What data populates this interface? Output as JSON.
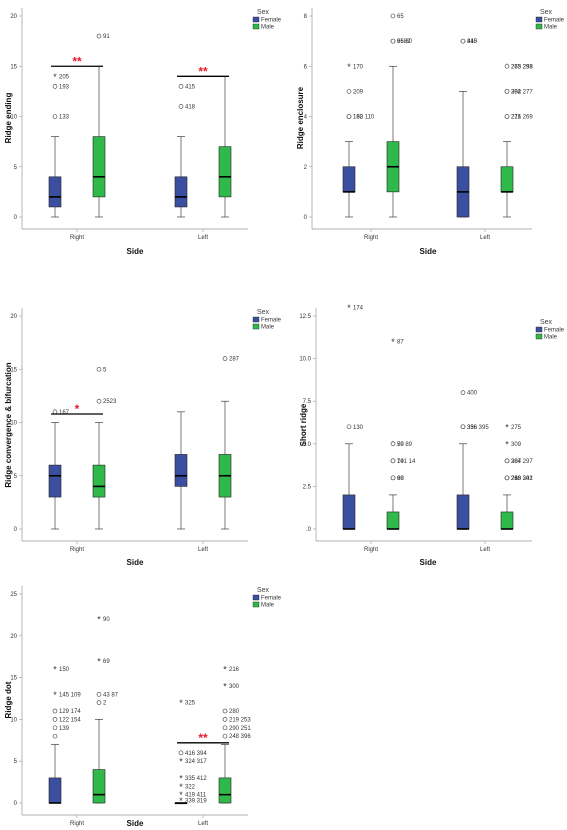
{
  "legend": {
    "title": "Sex",
    "female": "Female",
    "male": "Male"
  },
  "colors": {
    "female": "#3b4fa0",
    "male": "#2fb94a",
    "sig": "#e8192c"
  },
  "chart_data": [
    {
      "type": "box",
      "ylabel": "Ridge ending",
      "xlabel": "Side",
      "categories": [
        "Right",
        "Left"
      ],
      "ylim": [
        0,
        20
      ],
      "yticks": [
        "0",
        "5",
        "10",
        "15",
        "20"
      ],
      "ytick_values": [
        0,
        5,
        10,
        15,
        20
      ],
      "boxes": [
        {
          "cat": 0,
          "sex": "female",
          "min": 0,
          "q1": 1,
          "median": 2,
          "q3": 4,
          "max": 8,
          "outliers": [
            {
              "v": 14,
              "label": "205",
              "star": true
            },
            {
              "v": 13,
              "label": "193",
              "star": false
            },
            {
              "v": 10,
              "label": "133",
              "star": false
            }
          ]
        },
        {
          "cat": 0,
          "sex": "male",
          "min": 0,
          "q1": 2,
          "median": 4,
          "q3": 8,
          "max": 15,
          "outliers": [
            {
              "v": 18,
              "label": "91",
              "star": false
            }
          ]
        },
        {
          "cat": 1,
          "sex": "female",
          "min": 0,
          "q1": 1,
          "median": 2,
          "q3": 4,
          "max": 8,
          "outliers": [
            {
              "v": 13,
              "label": "415",
              "star": false
            },
            {
              "v": 11,
              "label": "418",
              "star": false
            }
          ]
        },
        {
          "cat": 1,
          "sex": "male",
          "min": 0,
          "q1": 2,
          "median": 4,
          "q3": 7,
          "max": 14,
          "outliers": []
        }
      ],
      "significance": [
        {
          "cat": 0,
          "y": 15,
          "label": "**"
        },
        {
          "cat": 1,
          "y": 14,
          "label": "**"
        }
      ]
    },
    {
      "type": "box",
      "ylabel": "Ridge enclosure",
      "xlabel": "Side",
      "categories": [
        "Right",
        "Left"
      ],
      "ylim": [
        0,
        8
      ],
      "yticks": [
        "0",
        "2",
        "4",
        "6",
        "8"
      ],
      "ytick_values": [
        0,
        2,
        4,
        6,
        8
      ],
      "boxes": [
        {
          "cat": 0,
          "sex": "female",
          "min": 0,
          "q1": 1,
          "median": 1,
          "q3": 2,
          "max": 3,
          "outliers": [
            {
              "v": 6,
              "label": "170",
              "star": true
            },
            {
              "v": 5,
              "label": "209",
              "star": false
            },
            {
              "v": 4,
              "label": "160 110",
              "star": false
            },
            {
              "v": 4,
              "label": "132",
              "star": false
            }
          ]
        },
        {
          "cat": 0,
          "sex": "male",
          "min": 0,
          "q1": 1,
          "median": 2,
          "q3": 3,
          "max": 6,
          "outliers": [
            {
              "v": 8,
              "label": "65",
              "star": false
            },
            {
              "v": 7,
              "label": "9682",
              "star": false
            },
            {
              "v": 7,
              "label": "65  60",
              "star": false
            }
          ]
        },
        {
          "cat": 1,
          "sex": "female",
          "min": 0,
          "q1": 0,
          "median": 1,
          "q3": 2,
          "max": 5,
          "outliers": [
            {
              "v": 7,
              "label": "410",
              "star": false
            },
            {
              "v": 7,
              "label": "345",
              "star": false
            }
          ]
        },
        {
          "cat": 1,
          "sex": "male",
          "min": 0,
          "q1": 1,
          "median": 1,
          "q3": 2,
          "max": 3,
          "outliers": [
            {
              "v": 6,
              "label": "263  256",
              "star": true
            },
            {
              "v": 6,
              "label": "275  293",
              "star": false
            },
            {
              "v": 5,
              "label": "284  277",
              "star": false
            },
            {
              "v": 5,
              "label": "302",
              "star": false
            },
            {
              "v": 4,
              "label": "216  269",
              "star": false
            },
            {
              "v": 4,
              "label": "271",
              "star": false
            }
          ]
        }
      ],
      "significance": []
    },
    {
      "type": "box",
      "ylabel": "Ridge convergence & bifurcation",
      "xlabel": "Side",
      "categories": [
        "Right",
        "Left"
      ],
      "ylim": [
        0,
        20
      ],
      "yticks": [
        "0",
        "5",
        "10",
        "15",
        "20"
      ],
      "ytick_values": [
        0,
        5,
        10,
        15,
        20
      ],
      "boxes": [
        {
          "cat": 0,
          "sex": "female",
          "min": 0,
          "q1": 3,
          "median": 5,
          "q3": 6,
          "max": 10,
          "outliers": [
            {
              "v": 11,
              "label": "167",
              "star": false
            }
          ]
        },
        {
          "cat": 0,
          "sex": "male",
          "min": 0,
          "q1": 3,
          "median": 4,
          "q3": 6,
          "max": 10,
          "outliers": [
            {
              "v": 15,
              "label": "5",
              "star": false
            },
            {
              "v": 12,
              "label": "2523",
              "star": false
            }
          ]
        },
        {
          "cat": 1,
          "sex": "female",
          "min": 0,
          "q1": 4,
          "median": 5,
          "q3": 7,
          "max": 11,
          "outliers": []
        },
        {
          "cat": 1,
          "sex": "male",
          "min": 0,
          "q1": 3,
          "median": 5,
          "q3": 7,
          "max": 12,
          "outliers": [
            {
              "v": 16,
              "label": "287",
              "star": false
            }
          ]
        }
      ],
      "significance": [
        {
          "cat": 0,
          "y": 10.8,
          "label": "*"
        }
      ]
    },
    {
      "type": "box",
      "ylabel": "Short ridge",
      "xlabel": "Side",
      "categories": [
        "Right",
        "Left"
      ],
      "ylim": [
        0,
        12.5
      ],
      "yticks": [
        ".0",
        "2.5",
        "5.0",
        "7.5",
        "10.0",
        "12.5"
      ],
      "ytick_values": [
        0,
        2.5,
        5,
        7.5,
        10,
        12.5
      ],
      "boxes": [
        {
          "cat": 0,
          "sex": "female",
          "min": 0,
          "q1": 0,
          "median": 0,
          "q3": 2,
          "max": 5,
          "outliers": [
            {
              "v": 13,
              "label": "174",
              "star": true
            },
            {
              "v": 6,
              "label": "130",
              "star": false
            }
          ]
        },
        {
          "cat": 0,
          "sex": "male",
          "min": 0,
          "q1": 0,
          "median": 0,
          "q3": 1,
          "max": 2,
          "outliers": [
            {
              "v": 11,
              "label": "87",
              "star": true
            },
            {
              "v": 5,
              "label": "59 89",
              "star": true
            },
            {
              "v": 5,
              "label": "70",
              "star": false
            },
            {
              "v": 4,
              "label": "74",
              "star": false
            },
            {
              "v": 4,
              "label": "101 14",
              "star": false
            },
            {
              "v": 3,
              "label": "68",
              "star": false
            },
            {
              "v": 3,
              "label": "90",
              "star": false
            }
          ]
        },
        {
          "cat": 1,
          "sex": "female",
          "min": 0,
          "q1": 0,
          "median": 0,
          "q3": 2,
          "max": 5,
          "outliers": [
            {
              "v": 8,
              "label": "400",
              "star": false
            },
            {
              "v": 6,
              "label": "356  395",
              "star": false
            },
            {
              "v": 6,
              "label": "336",
              "star": false
            }
          ]
        },
        {
          "cat": 1,
          "sex": "male",
          "min": 0,
          "q1": 0,
          "median": 0,
          "q3": 1,
          "max": 2,
          "outliers": [
            {
              "v": 6,
              "label": "275",
              "star": true
            },
            {
              "v": 5,
              "label": "309",
              "star": true
            },
            {
              "v": 4,
              "label": "284 297",
              "star": false
            },
            {
              "v": 4,
              "label": "307",
              "star": false
            },
            {
              "v": 3,
              "label": "283  301",
              "star": false
            },
            {
              "v": 3,
              "label": "260",
              "star": false
            },
            {
              "v": 3,
              "label": "218  242",
              "star": false
            }
          ]
        }
      ],
      "significance": []
    },
    {
      "type": "box",
      "ylabel": "Ridge dot",
      "xlabel": "Side",
      "categories": [
        "Right",
        "Left"
      ],
      "ylim": [
        0,
        25
      ],
      "yticks": [
        "0",
        "5",
        "10",
        "15",
        "20",
        "25"
      ],
      "ytick_values": [
        0,
        5,
        10,
        15,
        20,
        25
      ],
      "boxes": [
        {
          "cat": 0,
          "sex": "female",
          "min": 0,
          "q1": 0,
          "median": 0,
          "q3": 3,
          "max": 7,
          "outliers": [
            {
              "v": 16,
              "label": "150",
              "star": true
            },
            {
              "v": 13,
              "label": "145  109",
              "star": true
            },
            {
              "v": 11,
              "label": "129  174",
              "star": false
            },
            {
              "v": 10,
              "label": "122  154",
              "star": false
            },
            {
              "v": 9,
              "label": "139",
              "star": false
            },
            {
              "v": 8,
              "label": "",
              "star": false
            }
          ]
        },
        {
          "cat": 0,
          "sex": "male",
          "min": 0,
          "q1": 0,
          "median": 1,
          "q3": 4,
          "max": 10,
          "outliers": [
            {
              "v": 22,
              "label": "90",
              "star": true
            },
            {
              "v": 17,
              "label": "69",
              "star": true
            },
            {
              "v": 13,
              "label": "43  87",
              "star": false
            },
            {
              "v": 12,
              "label": "2",
              "star": false
            }
          ]
        },
        {
          "cat": 1,
          "sex": "female",
          "min": 0,
          "q1": 0,
          "median": 0,
          "q3": 0,
          "max": 0,
          "outliers": [
            {
              "v": 12,
              "label": "325",
              "star": true
            },
            {
              "v": 6,
              "label": "416  394",
              "star": false
            },
            {
              "v": 5,
              "label": "324  317",
              "star": true
            },
            {
              "v": 3,
              "label": "335  412",
              "star": true
            },
            {
              "v": 2,
              "label": "322",
              "star": true
            },
            {
              "v": 1,
              "label": "419  411",
              "star": true
            },
            {
              "v": 0.3,
              "label": "339  319",
              "star": true
            }
          ]
        },
        {
          "cat": 1,
          "sex": "male",
          "min": 0,
          "q1": 0,
          "median": 1,
          "q3": 3,
          "max": 7,
          "outliers": [
            {
              "v": 16,
              "label": "216",
              "star": true
            },
            {
              "v": 14,
              "label": "300",
              "star": true
            },
            {
              "v": 11,
              "label": "280",
              "star": false
            },
            {
              "v": 10,
              "label": "219 253",
              "star": false
            },
            {
              "v": 9,
              "label": "290  251",
              "star": false
            },
            {
              "v": 8,
              "label": "248  396",
              "star": false
            }
          ]
        }
      ],
      "significance": [
        {
          "cat": 1,
          "y": 7.2,
          "label": "**"
        }
      ]
    }
  ]
}
